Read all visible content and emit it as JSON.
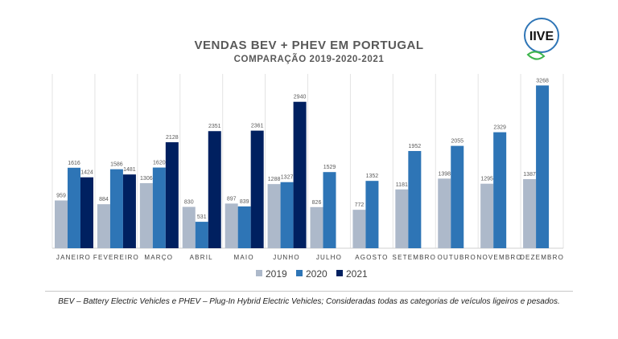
{
  "chart_data": {
    "type": "bar",
    "title": "VENDAS BEV + PHEV EM PORTUGAL",
    "subtitle": "COMPARAÇÃO 2019-2020-2021",
    "categories": [
      "JANEIRO",
      "FEVEREIRO",
      "MARÇO",
      "ABRIL",
      "MAIO",
      "JUNHO",
      "JULHO",
      "AGOSTO",
      "SETEMBRO",
      "OUTUBRO",
      "NOVEMBRO",
      "DEZEMBRO"
    ],
    "series": [
      {
        "name": "2019",
        "color": "#adb9ca",
        "values": [
          959,
          884,
          1306,
          830,
          897,
          1288,
          826,
          772,
          1181,
          1398,
          1295,
          1387
        ]
      },
      {
        "name": "2020",
        "color": "#2e75b6",
        "values": [
          1616,
          1586,
          1620,
          531,
          839,
          1327,
          1529,
          1352,
          1952,
          2055,
          2329,
          3268
        ]
      },
      {
        "name": "2021",
        "color": "#002060",
        "values": [
          1424,
          1481,
          2128,
          2351,
          2361,
          2940,
          null,
          null,
          null,
          null,
          null,
          null
        ]
      }
    ],
    "ylim": [
      0,
      3500
    ],
    "grid": "vertical category separators",
    "legend": "bottom",
    "data_labels": true
  },
  "footnote": "BEV – Battery Electric Vehicles e PHEV – Plug-In Hybrid Electric Vehicles; Consideradas todas as categorias de veículos ligeiros e pesados.",
  "logo": {
    "text": "IIVE",
    "ring_color": "#2e75b6",
    "leaf_color": "#3cb44b"
  }
}
